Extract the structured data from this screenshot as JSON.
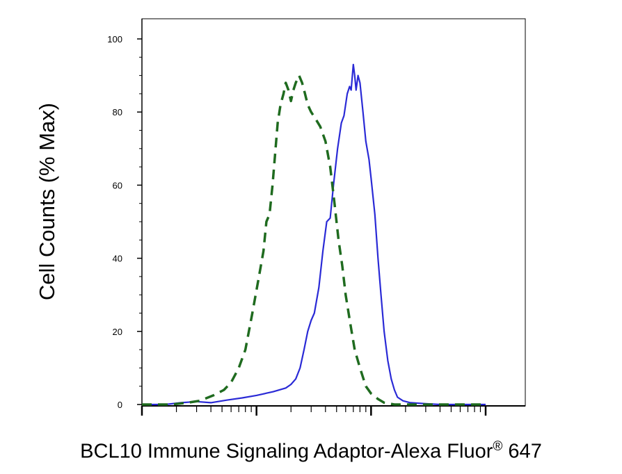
{
  "chart_data": {
    "type": "line",
    "ylabel": "Cell Counts (% Max)",
    "xlabel_main": "BCL10 Immune Signaling Adaptor-Alexa Fluor",
    "xlabel_sup": "®",
    "xlabel_tail": " 647",
    "x_scale": "log",
    "xlim": [
      1,
      1000
    ],
    "ylim": [
      0,
      100
    ],
    "y_ticks": [
      0,
      20,
      40,
      60,
      80,
      100
    ],
    "y_tick_labels": [
      "0",
      "20",
      "40",
      "60",
      "80",
      "100"
    ],
    "grid": false,
    "legend": "none",
    "series": [
      {
        "color": "#2a2ad6",
        "style": "solid",
        "points": [
          [
            1.0,
            0
          ],
          [
            1.6,
            0
          ],
          [
            2.2,
            0.5
          ],
          [
            3.0,
            0.8
          ],
          [
            4.0,
            0.5
          ],
          [
            5.5,
            1.2
          ],
          [
            7.5,
            1.8
          ],
          [
            10,
            2.5
          ],
          [
            14,
            3.5
          ],
          [
            18,
            4.5
          ],
          [
            20,
            5.5
          ],
          [
            22,
            7
          ],
          [
            24,
            10
          ],
          [
            26,
            15
          ],
          [
            28,
            20
          ],
          [
            30,
            23
          ],
          [
            32,
            25
          ],
          [
            35,
            32
          ],
          [
            38,
            42
          ],
          [
            41,
            50
          ],
          [
            44,
            51
          ],
          [
            47,
            60
          ],
          [
            51,
            70
          ],
          [
            55,
            77
          ],
          [
            58,
            79
          ],
          [
            62,
            85
          ],
          [
            65,
            87
          ],
          [
            67,
            86
          ],
          [
            70,
            93
          ],
          [
            72,
            90
          ],
          [
            74,
            86
          ],
          [
            77,
            90
          ],
          [
            80,
            88
          ],
          [
            85,
            80
          ],
          [
            90,
            72
          ],
          [
            96,
            67
          ],
          [
            100,
            62
          ],
          [
            108,
            52
          ],
          [
            115,
            40
          ],
          [
            122,
            30
          ],
          [
            130,
            20
          ],
          [
            140,
            12
          ],
          [
            150,
            7
          ],
          [
            160,
            4
          ],
          [
            170,
            2
          ],
          [
            190,
            1
          ],
          [
            220,
            0.5
          ],
          [
            300,
            0.2
          ],
          [
            400,
            0
          ],
          [
            1000,
            0
          ]
        ]
      },
      {
        "color": "#1f6b1f",
        "style": "dashed",
        "points": [
          [
            1.0,
            0
          ],
          [
            1.8,
            0
          ],
          [
            2.5,
            0.5
          ],
          [
            3.2,
            1
          ],
          [
            4.2,
            2.5
          ],
          [
            5.2,
            4
          ],
          [
            6.0,
            6
          ],
          [
            7.0,
            10
          ],
          [
            8.0,
            15
          ],
          [
            9.2,
            25
          ],
          [
            10.5,
            35
          ],
          [
            11.5,
            42
          ],
          [
            12.2,
            50
          ],
          [
            13.0,
            52
          ],
          [
            13.8,
            60
          ],
          [
            14.5,
            68
          ],
          [
            15.3,
            77
          ],
          [
            16.2,
            82
          ],
          [
            17.2,
            85
          ],
          [
            18.0,
            88
          ],
          [
            19.0,
            86
          ],
          [
            20.0,
            83
          ],
          [
            21.0,
            86
          ],
          [
            22.0,
            88
          ],
          [
            23.5,
            90
          ],
          [
            25.0,
            88
          ],
          [
            26.5,
            85
          ],
          [
            28.0,
            82
          ],
          [
            30,
            80
          ],
          [
            33,
            78
          ],
          [
            36,
            76
          ],
          [
            40,
            72
          ],
          [
            44,
            65
          ],
          [
            48,
            55
          ],
          [
            52,
            45
          ],
          [
            56,
            38
          ],
          [
            60,
            30
          ],
          [
            66,
            22
          ],
          [
            72,
            15
          ],
          [
            80,
            10
          ],
          [
            90,
            5
          ],
          [
            100,
            3
          ],
          [
            115,
            1.5
          ],
          [
            130,
            0.5
          ],
          [
            160,
            0
          ],
          [
            1000,
            0
          ]
        ]
      }
    ]
  }
}
